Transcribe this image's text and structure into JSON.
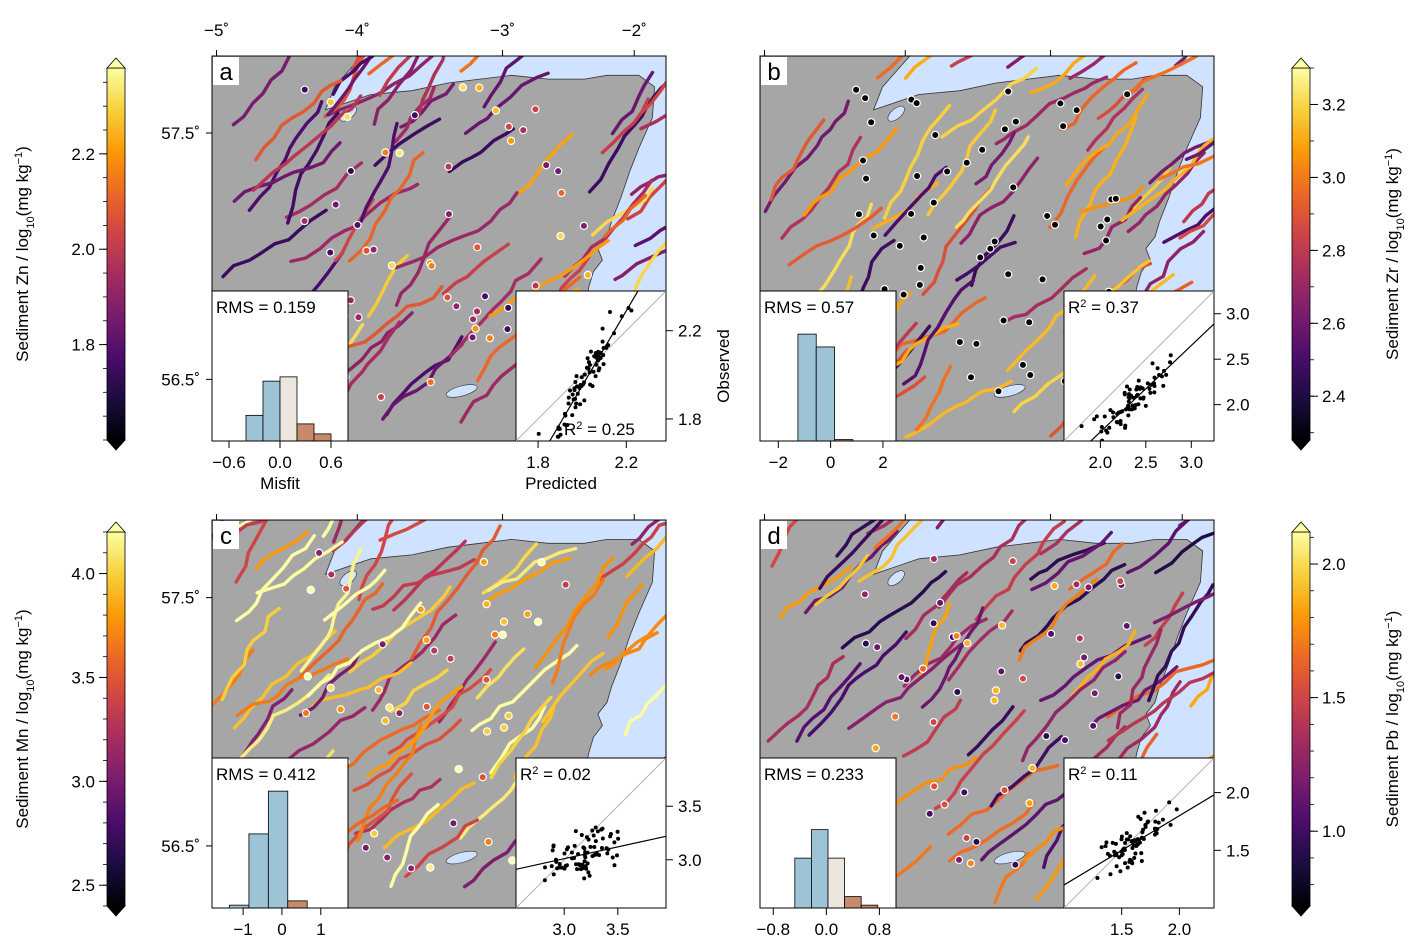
{
  "top_axis": {
    "ticks": [
      "−5˚",
      "−4˚",
      "−3˚",
      "−2˚"
    ]
  },
  "lat_ticks": [
    "57.5˚",
    "56.5˚"
  ],
  "colormap": [
    "#000004",
    "#1b0c41",
    "#4a0c6b",
    "#781c6d",
    "#a52c60",
    "#cf4446",
    "#ed6925",
    "#fb9b06",
    "#f7d13d",
    "#fcffa4"
  ],
  "colors": {
    "sea": "#cfe2ff",
    "land": "#a6a6a6",
    "lake": "#cfe2ff",
    "bar_blue": "#9dc3d7",
    "bar_beige": "#ede6df",
    "bar_brown": "#c88a6a"
  },
  "panels": [
    {
      "letter": "a",
      "colorbar": {
        "side": "left",
        "label_main": "Sediment Zn / log",
        "sub": "10",
        "label_tail": "(mg kg",
        "sup": "−1",
        "close": ")",
        "min": 1.6,
        "max": 2.38,
        "ticks": [
          "1.8",
          "2.0",
          "2.2"
        ],
        "minor_step": 0.05
      },
      "rms": "RMS = 0.159",
      "r2_prefix": "R",
      "r2_sup": "2",
      "r2_value": " = 0.25",
      "hist": {
        "ticks": [
          "−0.6",
          "0.0",
          "0.6"
        ],
        "xmin": -0.8,
        "xmax": 0.8,
        "bins": [
          -0.3,
          -0.1,
          0.1,
          0.3,
          0.5
        ],
        "heights": [
          0.18,
          0.42,
          0.45,
          0.12,
          0.05
        ],
        "xlabel": "Misfit"
      },
      "scatter": {
        "ticks": [
          "1.8",
          "2.2"
        ],
        "yticks": [
          "1.8",
          "2.2"
        ],
        "min": 1.7,
        "max": 2.38,
        "xlabel": "Predicted",
        "ylabel": "Observed",
        "slope": 1.7,
        "intercept": -1.45
      }
    },
    {
      "letter": "b",
      "colorbar": {
        "side": "right",
        "label_main": "Sediment Zr / log",
        "sub": "10",
        "label_tail": "(mg kg",
        "sup": "−1",
        "close": ")",
        "min": 2.28,
        "max": 3.3,
        "ticks": [
          "2.4",
          "2.6",
          "2.8",
          "3.0",
          "3.2"
        ],
        "minor_step": 0.1
      },
      "rms": "RMS = 0.57",
      "r2_prefix": "R",
      "r2_sup": "2",
      "r2_value": " = 0.37",
      "hist": {
        "ticks": [
          "−2",
          "0",
          "2"
        ],
        "xmin": -2.7,
        "xmax": 2.5,
        "bins": [
          -0.9,
          -0.2,
          0.5
        ],
        "heights": [
          0.75,
          0.66,
          0.01
        ],
        "xlabel": ""
      },
      "scatter": {
        "ticks": [
          "2.0",
          "2.5",
          "3.0"
        ],
        "yticks": [
          "2.0",
          "2.5",
          "3.0"
        ],
        "min": 1.6,
        "max": 3.25,
        "xlabel": "",
        "ylabel": "",
        "slope": 0.95,
        "intercept": -0.2
      }
    },
    {
      "letter": "c",
      "colorbar": {
        "side": "left",
        "label_main": "Sediment Mn / log",
        "sub": "10",
        "label_tail": "(mg kg",
        "sup": "−1",
        "close": ")",
        "min": 2.4,
        "max": 4.2,
        "ticks": [
          "2.5",
          "3.0",
          "3.5",
          "4.0"
        ],
        "minor_step": 0.1
      },
      "rms": "RMS = 0.412",
      "r2_prefix": "R",
      "r2_sup": "2",
      "r2_value": " = 0.02",
      "hist": {
        "ticks": [
          "−1",
          "0",
          "1"
        ],
        "xmin": -1.8,
        "xmax": 1.7,
        "bins": [
          -1.1,
          -0.6,
          -0.1,
          0.4
        ],
        "heights": [
          0.02,
          0.52,
          0.82,
          0.05
        ],
        "xlabel": ""
      },
      "scatter": {
        "ticks": [
          "3.0",
          "3.5"
        ],
        "yticks": [
          "3.0",
          "3.5"
        ],
        "min": 2.55,
        "max": 3.95,
        "xlabel": "",
        "ylabel": "",
        "slope": 0.22,
        "intercept": 2.35
      }
    },
    {
      "letter": "d",
      "colorbar": {
        "side": "right",
        "label_main": "Sediment Pb / log",
        "sub": "10",
        "label_tail": "(mg kg",
        "sup": "−1",
        "close": ")",
        "min": 0.72,
        "max": 2.12,
        "ticks": [
          "1.0",
          "1.5",
          "2.0"
        ],
        "minor_step": 0.1
      },
      "rms": "RMS = 0.233",
      "r2_prefix": "R",
      "r2_sup": "2",
      "r2_value": " = 0.11",
      "hist": {
        "ticks": [
          "−0.8",
          "0.0",
          "0.8"
        ],
        "xmin": -1.0,
        "xmax": 1.05,
        "bins": [
          -0.35,
          -0.1,
          0.15,
          0.4,
          0.65
        ],
        "heights": [
          0.35,
          0.55,
          0.35,
          0.08,
          0.02
        ],
        "xlabel": ""
      },
      "scatter": {
        "ticks": [
          "1.5",
          "2.0"
        ],
        "yticks": [
          "1.5",
          "2.0"
        ],
        "min": 1.0,
        "max": 2.3,
        "xlabel": "",
        "ylabel": "",
        "slope": 0.6,
        "intercept": 0.6
      }
    }
  ]
}
